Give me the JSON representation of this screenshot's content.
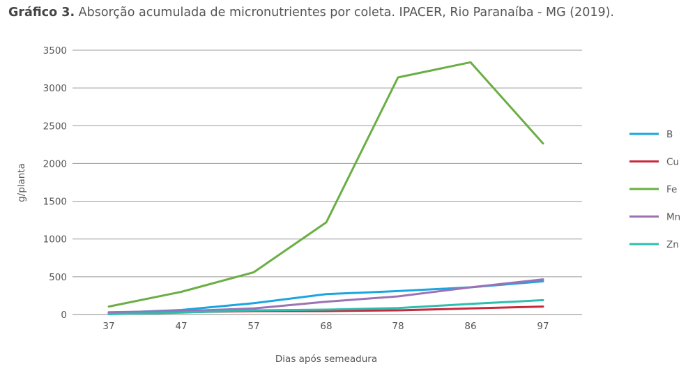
{
  "header": {
    "title_bold": "Gráfico 3.",
    "title_rest": " Absorção acumulada de micronutrientes por coleta. IPACER, Rio Paranaíba - MG (2019)."
  },
  "chart_data": {
    "type": "line",
    "title": "Gráfico 3. Absorção acumulada de micronutrientes por coleta. IPACER, Rio Paranaíba - MG (2019).",
    "xlabel": "Dias após semeadura",
    "ylabel": "g/planta",
    "categories": [
      "37",
      "47",
      "57",
      "68",
      "78",
      "86",
      "97"
    ],
    "ylim": [
      0,
      3500
    ],
    "yticks": [
      0,
      500,
      1000,
      1500,
      2000,
      2500,
      3000,
      3500
    ],
    "grid": true,
    "legend_position": "right",
    "series": [
      {
        "name": "B",
        "color": "#1aa5e0",
        "values": [
          20,
          60,
          150,
          270,
          310,
          360,
          440
        ]
      },
      {
        "name": "Cu",
        "color": "#c8283c",
        "values": [
          10,
          30,
          45,
          45,
          55,
          80,
          105
        ]
      },
      {
        "name": "Fe",
        "color": "#6aae44",
        "values": [
          105,
          300,
          560,
          1220,
          3140,
          3340,
          2265
        ]
      },
      {
        "name": "Mn",
        "color": "#9b73b5",
        "values": [
          30,
          45,
          80,
          170,
          240,
          360,
          465
        ]
      },
      {
        "name": "Zn",
        "color": "#2ebeae",
        "values": [
          5,
          25,
          55,
          65,
          85,
          140,
          190
        ]
      }
    ]
  }
}
